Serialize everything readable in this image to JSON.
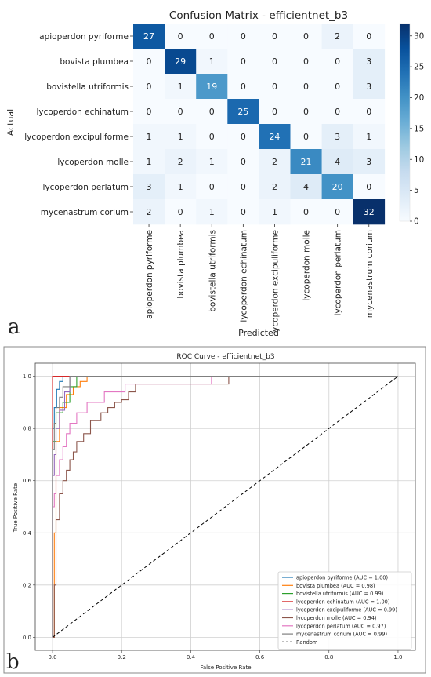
{
  "panels": {
    "a": {
      "letter": "a"
    },
    "b": {
      "letter": "b"
    }
  },
  "chart_data": [
    {
      "type": "heatmap",
      "title": "Confusion Matrix - efficientnet_b3",
      "xlabel": "Predicted",
      "ylabel": "Actual",
      "row_labels": [
        "apioperdon pyriforme",
        "bovista plumbea",
        "bovistella utriformis",
        "lycoperdon echinatum",
        "lycoperdon excipuliforme",
        "lycoperdon molle",
        "lycoperdon perlatum",
        "mycenastrum corium"
      ],
      "col_labels": [
        "apioperdon pyriforme",
        "bovista plumbea",
        "bovistella utriformis",
        "lycoperdon echinatum",
        "lycoperdon excipuliforme",
        "lycoperdon molle",
        "lycoperdon perlatum",
        "mycenastrum corium"
      ],
      "matrix": [
        [
          27,
          0,
          0,
          0,
          0,
          0,
          2,
          0
        ],
        [
          0,
          29,
          1,
          0,
          0,
          0,
          0,
          3
        ],
        [
          0,
          1,
          19,
          0,
          0,
          0,
          0,
          3
        ],
        [
          0,
          0,
          0,
          25,
          0,
          0,
          0,
          0
        ],
        [
          1,
          1,
          0,
          0,
          24,
          0,
          3,
          1
        ],
        [
          1,
          2,
          1,
          0,
          2,
          21,
          4,
          3
        ],
        [
          3,
          1,
          0,
          0,
          2,
          4,
          20,
          0
        ],
        [
          2,
          0,
          1,
          0,
          1,
          0,
          0,
          32
        ]
      ],
      "colorbar": {
        "min": 0,
        "max": 32,
        "ticks": [
          0,
          5,
          10,
          15,
          20,
          25,
          30
        ],
        "colormap": "Blues"
      }
    },
    {
      "type": "line",
      "title": "ROC Curve - efficientnet_b3",
      "xlabel": "False Positive Rate",
      "ylabel": "True Positive Rate",
      "xlim": [
        0.0,
        1.0
      ],
      "ylim": [
        0.0,
        1.0
      ],
      "xticks": [
        "0.0",
        "0.2",
        "0.4",
        "0.6",
        "0.8",
        "1.0"
      ],
      "yticks": [
        "0.0",
        "0.2",
        "0.4",
        "0.6",
        "0.8",
        "1.0"
      ],
      "grid": true,
      "legend_position": "lower-right",
      "series": [
        {
          "name": "apioperdon pyriforme (AUC = 1.00)",
          "color": "#1f77b4",
          "x": [
            0,
            0,
            0.005,
            0.005,
            0.012,
            0.012,
            0.02,
            0.02,
            0.03,
            0.03,
            1.0
          ],
          "y": [
            0,
            0.8,
            0.8,
            0.88,
            0.88,
            0.95,
            0.95,
            0.98,
            0.98,
            1.0,
            1.0
          ]
        },
        {
          "name": "bovista plumbea (AUC = 0.98)",
          "color": "#ff7f0e",
          "x": [
            0,
            0.005,
            0.005,
            0.01,
            0.01,
            0.02,
            0.02,
            0.04,
            0.04,
            0.06,
            0.06,
            0.08,
            0.08,
            0.1,
            0.1,
            1.0
          ],
          "y": [
            0,
            0,
            0.4,
            0.4,
            0.75,
            0.75,
            0.88,
            0.88,
            0.93,
            0.93,
            0.96,
            0.96,
            0.98,
            0.98,
            1.0,
            1.0
          ]
        },
        {
          "name": "bovistella utriformis (AUC = 0.99)",
          "color": "#2ca02c",
          "x": [
            0,
            0,
            0.01,
            0.01,
            0.03,
            0.03,
            0.05,
            0.05,
            0.07,
            0.07,
            1.0
          ],
          "y": [
            0,
            0.75,
            0.75,
            0.86,
            0.86,
            0.9,
            0.9,
            0.96,
            0.96,
            1.0,
            1.0
          ]
        },
        {
          "name": "lycoperdon echinatum (AUC = 1.00)",
          "color": "#d62728",
          "x": [
            0,
            0,
            1.0
          ],
          "y": [
            0,
            1.0,
            1.0
          ]
        },
        {
          "name": "lycoperdon excipuliforme (AUC = 0.99)",
          "color": "#9467bd",
          "x": [
            0,
            0,
            0.005,
            0.005,
            0.01,
            0.01,
            0.02,
            0.02,
            0.035,
            0.035,
            0.05,
            0.05,
            1.0
          ],
          "y": [
            0,
            0.62,
            0.62,
            0.7,
            0.7,
            0.8,
            0.8,
            0.87,
            0.87,
            0.94,
            0.94,
            1.0,
            1.0
          ]
        },
        {
          "name": "lycoperdon molle (AUC = 0.94)",
          "color": "#8c564b",
          "x": [
            0,
            0.005,
            0.005,
            0.01,
            0.01,
            0.02,
            0.02,
            0.03,
            0.03,
            0.04,
            0.04,
            0.05,
            0.05,
            0.06,
            0.06,
            0.07,
            0.07,
            0.09,
            0.09,
            0.11,
            0.11,
            0.14,
            0.14,
            0.16,
            0.16,
            0.18,
            0.18,
            0.2,
            0.2,
            0.22,
            0.22,
            0.24,
            0.24,
            0.51,
            0.51,
            1.0
          ],
          "y": [
            0,
            0,
            0.2,
            0.2,
            0.45,
            0.45,
            0.55,
            0.55,
            0.6,
            0.6,
            0.64,
            0.64,
            0.68,
            0.68,
            0.71,
            0.71,
            0.75,
            0.75,
            0.78,
            0.78,
            0.83,
            0.83,
            0.86,
            0.86,
            0.88,
            0.88,
            0.9,
            0.9,
            0.91,
            0.91,
            0.94,
            0.94,
            0.97,
            0.97,
            1.0,
            1.0
          ]
        },
        {
          "name": "lycoperdon perlatum (AUC = 0.97)",
          "color": "#e377c2",
          "x": [
            0,
            0,
            0.005,
            0.005,
            0.01,
            0.01,
            0.02,
            0.02,
            0.03,
            0.03,
            0.04,
            0.04,
            0.05,
            0.05,
            0.07,
            0.07,
            0.1,
            0.1,
            0.15,
            0.15,
            0.21,
            0.21,
            0.46,
            0.46,
            1.0
          ],
          "y": [
            0,
            0.5,
            0.5,
            0.55,
            0.55,
            0.62,
            0.62,
            0.68,
            0.68,
            0.73,
            0.73,
            0.78,
            0.78,
            0.82,
            0.82,
            0.86,
            0.86,
            0.9,
            0.9,
            0.94,
            0.94,
            0.97,
            0.97,
            1.0,
            1.0
          ]
        },
        {
          "name": "mycenastrum corium (AUC = 0.99)",
          "color": "#7f7f7f",
          "x": [
            0,
            0,
            0.005,
            0.005,
            0.01,
            0.01,
            0.02,
            0.02,
            0.03,
            0.03,
            0.05,
            0.05,
            1.0
          ],
          "y": [
            0,
            0.72,
            0.72,
            0.82,
            0.82,
            0.88,
            0.88,
            0.92,
            0.92,
            0.96,
            0.96,
            1.0,
            1.0
          ]
        },
        {
          "name": "Random",
          "color": "#000000",
          "dashed": true,
          "x": [
            0,
            1
          ],
          "y": [
            0,
            1
          ]
        }
      ]
    }
  ]
}
